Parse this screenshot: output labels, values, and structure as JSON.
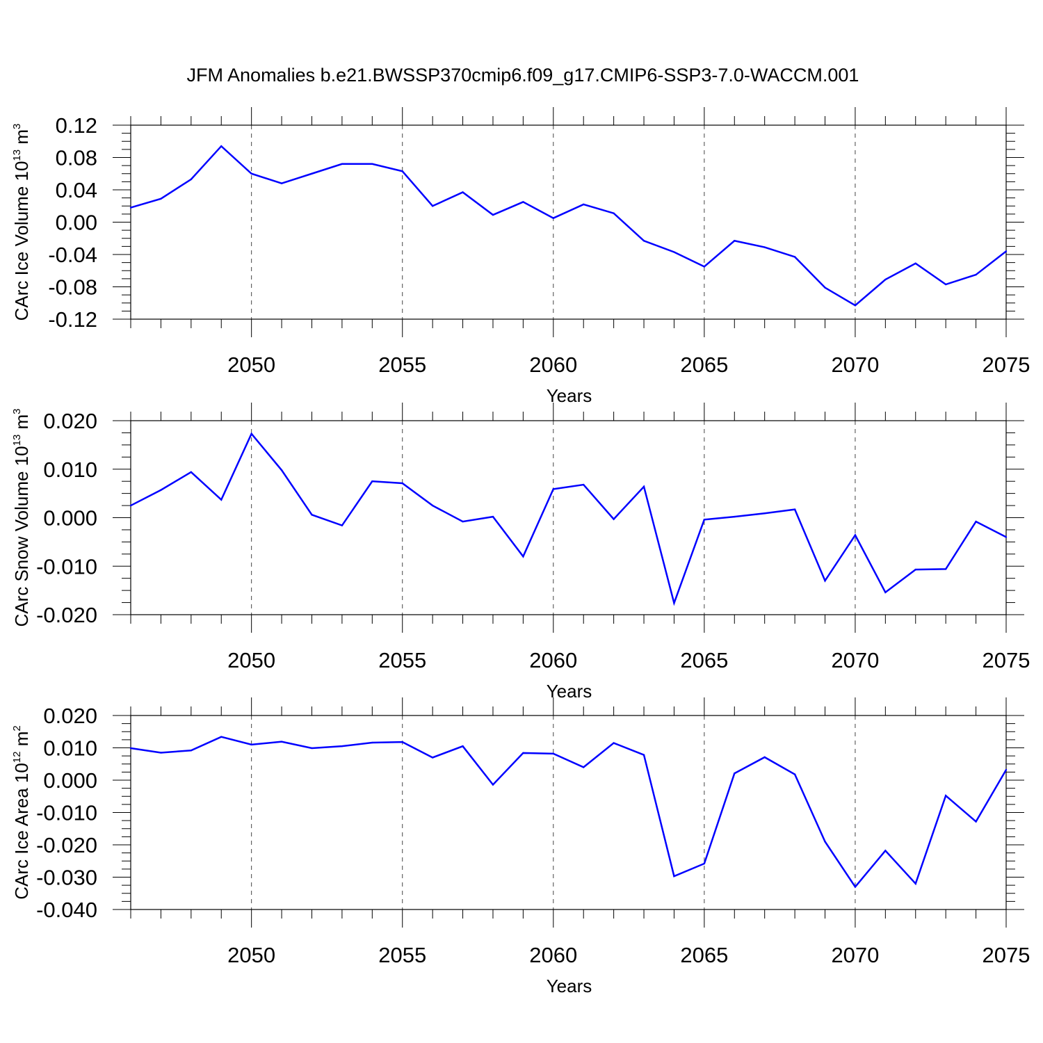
{
  "title": "JFM Anomalies b.e21.BWSSP370cmip6.f09_g17.CMIP6-SSP3-7.0-WACCM.001",
  "colors": {
    "series": "#0000ff",
    "axis": "#000000",
    "grid": "#444444"
  },
  "chart_data": [
    {
      "type": "line",
      "ylabel": "CArc Ice Volume 10",
      "ylabel_exp": "13",
      "ylabel_unit": " m",
      "ylabel_unit_exp": "3",
      "xlabel": "Years",
      "xlim": [
        2046,
        2075
      ],
      "ylim": [
        -0.12,
        0.12
      ],
      "yticks": [
        "0.12",
        "0.08",
        "0.04",
        "0.00",
        "-0.04",
        "-0.08",
        "-0.12"
      ],
      "xticks": [
        "2050",
        "2055",
        "2060",
        "2065",
        "2070",
        "2075"
      ],
      "grid": "vertical dashed at major x ticks",
      "x": [
        2046,
        2047,
        2048,
        2049,
        2050,
        2051,
        2052,
        2053,
        2054,
        2055,
        2056,
        2057,
        2058,
        2059,
        2060,
        2061,
        2062,
        2063,
        2064,
        2065,
        2066,
        2067,
        2068,
        2069,
        2070,
        2071,
        2072,
        2073,
        2074,
        2075
      ],
      "values": [
        0.018,
        0.029,
        0.053,
        0.094,
        0.06,
        0.048,
        0.06,
        0.072,
        0.072,
        0.063,
        0.02,
        0.037,
        0.009,
        0.025,
        0.005,
        0.022,
        0.011,
        -0.023,
        -0.037,
        -0.055,
        -0.023,
        -0.031,
        -0.043,
        -0.081,
        -0.103,
        -0.071,
        -0.051,
        -0.077,
        -0.065,
        -0.036
      ]
    },
    {
      "type": "line",
      "ylabel": "CArc Snow Volume 10",
      "ylabel_exp": "13",
      "ylabel_unit": " m",
      "ylabel_unit_exp": "3",
      "xlabel": "Years",
      "xlim": [
        2046,
        2075
      ],
      "ylim": [
        -0.02,
        0.02
      ],
      "yticks": [
        "0.020",
        "0.010",
        "0.000",
        "-0.010",
        "-0.020"
      ],
      "xticks": [
        "2050",
        "2055",
        "2060",
        "2065",
        "2070",
        "2075"
      ],
      "grid": "vertical dashed at major x ticks",
      "x": [
        2046,
        2047,
        2048,
        2049,
        2050,
        2051,
        2052,
        2053,
        2054,
        2055,
        2056,
        2057,
        2058,
        2059,
        2060,
        2061,
        2062,
        2063,
        2064,
        2065,
        2066,
        2067,
        2068,
        2069,
        2070,
        2071,
        2072,
        2073,
        2074,
        2075
      ],
      "values": [
        0.0025,
        0.0057,
        0.0094,
        0.0037,
        0.0173,
        0.0098,
        0.0006,
        -0.0016,
        0.0075,
        0.0071,
        0.0025,
        -0.0008,
        0.0002,
        -0.008,
        0.0059,
        0.0068,
        -0.0003,
        0.0064,
        -0.0176,
        -0.0004,
        0.0002,
        0.0009,
        0.0017,
        -0.013,
        -0.0036,
        -0.0154,
        -0.0107,
        -0.0106,
        -0.0008,
        -0.004
      ]
    },
    {
      "type": "line",
      "ylabel": "CArc Ice Area 10",
      "ylabel_exp": "12",
      "ylabel_unit": " m",
      "ylabel_unit_exp": "2",
      "xlabel": "Years",
      "xlim": [
        2046,
        2075
      ],
      "ylim": [
        -0.04,
        0.02
      ],
      "yticks": [
        "0.020",
        "0.010",
        "0.000",
        "-0.010",
        "-0.020",
        "-0.030",
        "-0.040"
      ],
      "xticks": [
        "2050",
        "2055",
        "2060",
        "2065",
        "2070",
        "2075"
      ],
      "grid": "vertical dashed at major x ticks",
      "x": [
        2046,
        2047,
        2048,
        2049,
        2050,
        2051,
        2052,
        2053,
        2054,
        2055,
        2056,
        2057,
        2058,
        2059,
        2060,
        2061,
        2062,
        2063,
        2064,
        2065,
        2066,
        2067,
        2068,
        2069,
        2070,
        2071,
        2072,
        2073,
        2074,
        2075
      ],
      "values": [
        0.0099,
        0.0085,
        0.0092,
        0.0134,
        0.011,
        0.0119,
        0.0099,
        0.0105,
        0.0116,
        0.0118,
        0.007,
        0.0105,
        -0.0014,
        0.0084,
        0.0082,
        0.004,
        0.0115,
        0.0078,
        -0.0297,
        -0.0258,
        0.0021,
        0.0071,
        0.0018,
        -0.019,
        -0.033,
        -0.0218,
        -0.032,
        -0.0048,
        -0.0128,
        0.0032
      ]
    }
  ]
}
